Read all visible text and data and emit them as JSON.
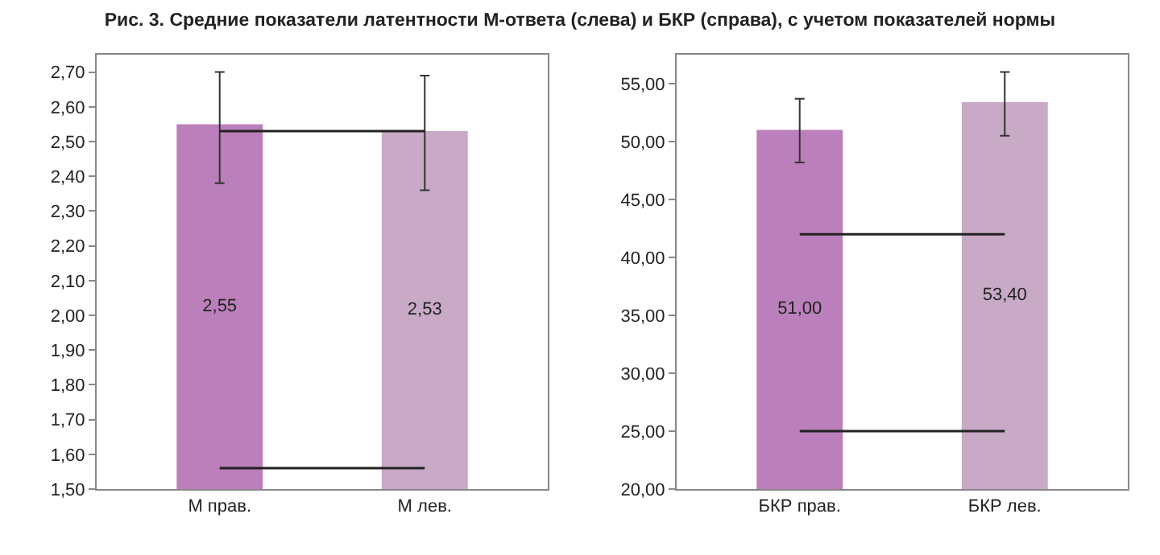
{
  "chart_data": [
    {
      "type": "bar",
      "title": "Рис. 3. Средние показатели латентности М-ответа (слева) и БКР (справа), с учетом показателей нормы",
      "categories": [
        "М прав.",
        "М лев."
      ],
      "values": [
        2.55,
        2.53
      ],
      "colors": [
        "#bb7fbb",
        "#c8a9c6"
      ],
      "errors": [
        [
          2.38,
          2.7
        ],
        [
          2.36,
          2.69
        ]
      ],
      "value_labels": [
        "2,55",
        "2,53"
      ],
      "ylim": [
        1.5,
        2.75
      ],
      "yticks": [
        {
          "value": 1.5,
          "label": "1,50"
        },
        {
          "value": 1.6,
          "label": "1,60"
        },
        {
          "value": 1.7,
          "label": "1,70"
        },
        {
          "value": 1.8,
          "label": "1,80"
        },
        {
          "value": 1.9,
          "label": "1,90"
        },
        {
          "value": 2.0,
          "label": "2,00"
        },
        {
          "value": 2.1,
          "label": "2,10"
        },
        {
          "value": 2.2,
          "label": "2,20"
        },
        {
          "value": 2.3,
          "label": "2,30"
        },
        {
          "value": 2.4,
          "label": "2,40"
        },
        {
          "value": 2.5,
          "label": "2,50"
        },
        {
          "value": 2.6,
          "label": "2,60"
        },
        {
          "value": 2.7,
          "label": "2,70"
        }
      ],
      "ref_lines": [
        {
          "axis": "y",
          "value": 2.53,
          "color": "#222222"
        },
        {
          "axis": "y",
          "value": 1.56,
          "color": "#222222"
        }
      ],
      "grid": false
    },
    {
      "type": "bar",
      "categories": [
        "БКР прав.",
        "БКР лев."
      ],
      "values": [
        51.0,
        53.4
      ],
      "colors": [
        "#bb7fbb",
        "#c8a9c6"
      ],
      "errors": [
        [
          48.2,
          53.7
        ],
        [
          50.5,
          56.0
        ]
      ],
      "value_labels": [
        "51,00",
        "53,40"
      ],
      "ylim": [
        20,
        57.5
      ],
      "yticks": [
        {
          "value": 20,
          "label": "20,00"
        },
        {
          "value": 25,
          "label": "25,00"
        },
        {
          "value": 30,
          "label": "30,00"
        },
        {
          "value": 35,
          "label": "35,00"
        },
        {
          "value": 40,
          "label": "40,00"
        },
        {
          "value": 45,
          "label": "45,00"
        },
        {
          "value": 50,
          "label": "50,00"
        },
        {
          "value": 55,
          "label": "55,00"
        }
      ],
      "ref_lines": [
        {
          "axis": "y",
          "value": 42,
          "color": "#222222"
        },
        {
          "axis": "y",
          "value": 25,
          "color": "#222222"
        }
      ],
      "grid": false
    }
  ]
}
